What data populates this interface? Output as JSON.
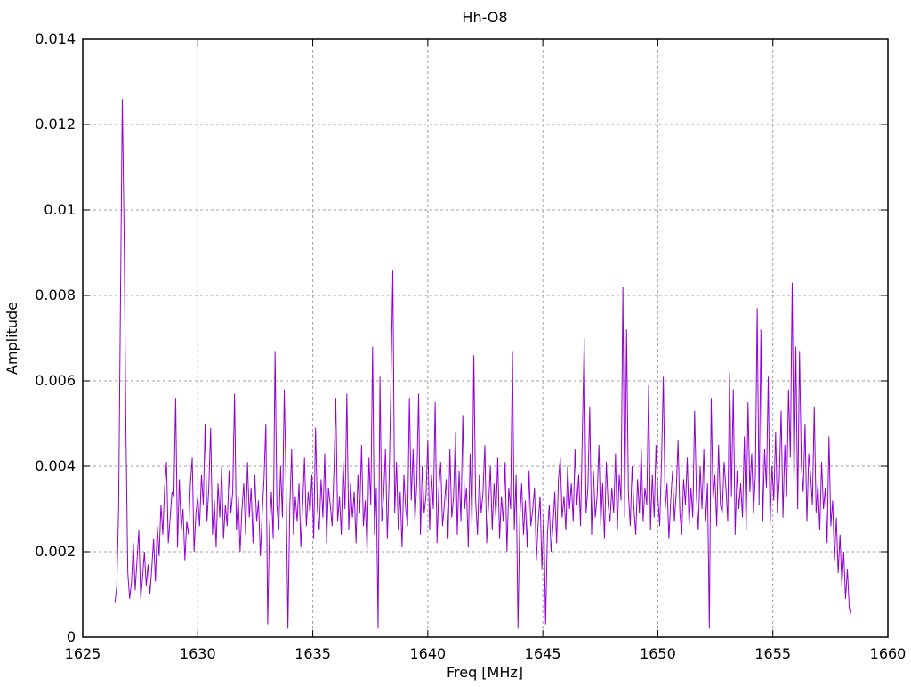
{
  "title": "Hh-O8",
  "xlabel": "Freq [MHz]",
  "ylabel": "Amplitude",
  "colors": {
    "line": "#9400d3",
    "grid": "#a0a0a0",
    "axis": "#000000",
    "background": "#ffffff"
  },
  "axes": {
    "x": {
      "min": 1625,
      "max": 1660,
      "tick_values": [
        1625,
        1630,
        1635,
        1640,
        1645,
        1650,
        1655,
        1660
      ],
      "tick_labels": [
        "1625",
        "1630",
        "1635",
        "1640",
        "1645",
        "1650",
        "1655",
        "1660"
      ]
    },
    "y": {
      "min": 0,
      "max": 0.014,
      "tick_values": [
        0,
        0.002,
        0.004,
        0.006,
        0.008,
        0.01,
        0.012,
        0.014
      ],
      "tick_labels": [
        "0",
        "0.002",
        "0.004",
        "0.006",
        "0.008",
        "0.01",
        "0.012",
        "0.014"
      ]
    }
  },
  "chart_data": {
    "type": "line",
    "title": "Hh-O8",
    "xlabel": "Freq [MHz]",
    "ylabel": "Amplitude",
    "xlim": [
      1625,
      1660
    ],
    "ylim": [
      0,
      0.014
    ],
    "grid": true,
    "legend": "none",
    "series_name": "amplitude-spectrum",
    "x_start": 1626.4,
    "x_step": 0.08,
    "amplitude_unit": 0.0001,
    "amplitudes": [
      8,
      12,
      30,
      79,
      126,
      94,
      47,
      15,
      9,
      13,
      22,
      11,
      18,
      25,
      9,
      14,
      20,
      12,
      17,
      10,
      16,
      23,
      13,
      26,
      19,
      31,
      24,
      35,
      41,
      22,
      28,
      34,
      33,
      56,
      21,
      37,
      25,
      30,
      18,
      27,
      24,
      36,
      42,
      20,
      29,
      33,
      26,
      38,
      31,
      50,
      27,
      35,
      49,
      24,
      32,
      21,
      36,
      28,
      40,
      23,
      31,
      26,
      39,
      29,
      34,
      57,
      25,
      33,
      20,
      30,
      36,
      24,
      41,
      28,
      35,
      22,
      38,
      27,
      32,
      19,
      29,
      37,
      50,
      3,
      26,
      34,
      23,
      67,
      31,
      25,
      40,
      28,
      58,
      35,
      2,
      30,
      44,
      24,
      33,
      27,
      36,
      21,
      31,
      42,
      26,
      34,
      29,
      38,
      23,
      49,
      30,
      25,
      37,
      28,
      43,
      22,
      35,
      31,
      26,
      39,
      56,
      27,
      33,
      24,
      41,
      30,
      57,
      25,
      36,
      28,
      34,
      22,
      38,
      29,
      45,
      26,
      32,
      20,
      42,
      31,
      68,
      24,
      35,
      2,
      61,
      27,
      33,
      44,
      23,
      37,
      60,
      86,
      29,
      41,
      25,
      34,
      21,
      38,
      30,
      26,
      56,
      32,
      44,
      27,
      36,
      57,
      24,
      40,
      29,
      33,
      46,
      25,
      38,
      30,
      55,
      22,
      35,
      41,
      26,
      31,
      37,
      23,
      44,
      28,
      33,
      48,
      24,
      39,
      27,
      52,
      30,
      35,
      21,
      43,
      26,
      66,
      32,
      24,
      38,
      29,
      34,
      45,
      22,
      31,
      40,
      25,
      36,
      28,
      42,
      23,
      33,
      27,
      41,
      20,
      35,
      30,
      67,
      25,
      38,
      2,
      28,
      36,
      24,
      32,
      21,
      39,
      26,
      30,
      35,
      18,
      27,
      33,
      16,
      29,
      3,
      24,
      31,
      20,
      26,
      34,
      22,
      37,
      42,
      28,
      33,
      25,
      40,
      30,
      36,
      27,
      44,
      31,
      38,
      26,
      48,
      70,
      29,
      35,
      54,
      24,
      39,
      28,
      33,
      45,
      26,
      36,
      23,
      41,
      31,
      27,
      35,
      29,
      43,
      25,
      38,
      32,
      82,
      28,
      72,
      34,
      26,
      40,
      30,
      24,
      37,
      29,
      44,
      27,
      35,
      31,
      59,
      25,
      38,
      28,
      45,
      33,
      26,
      41,
      61,
      30,
      36,
      23,
      32,
      39,
      27,
      34,
      46,
      29,
      24,
      37,
      31,
      42,
      26,
      35,
      28,
      53,
      33,
      25,
      40,
      30,
      44,
      27,
      36,
      2,
      56,
      32,
      38,
      26,
      45,
      31,
      29,
      41,
      35,
      27,
      62,
      33,
      58,
      24,
      39,
      30,
      36,
      28,
      47,
      25,
      55,
      34,
      43,
      29,
      38,
      77,
      31,
      72,
      27,
      44,
      35,
      61,
      26,
      40,
      32,
      48,
      29,
      37,
      53,
      28,
      45,
      33,
      58,
      42,
      83,
      36,
      68,
      30,
      67,
      40,
      34,
      50,
      27,
      43,
      38,
      31,
      54,
      29,
      36,
      25,
      41,
      30,
      35,
      22,
      47,
      26,
      32,
      18,
      28,
      15,
      24,
      12,
      20,
      9,
      16,
      7,
      5
    ],
    "notable_peaks": [
      {
        "freq": 1626.72,
        "amp": 0.0126
      },
      {
        "freq": 1626.8,
        "amp": 0.0094
      },
      {
        "freq": 1638.48,
        "amp": 0.0086
      },
      {
        "freq": 1655.84,
        "amp": 0.0083
      },
      {
        "freq": 1648.48,
        "amp": 0.0082
      },
      {
        "freq": 1654.32,
        "amp": 0.0077
      },
      {
        "freq": 1648.64,
        "amp": 0.0072
      },
      {
        "freq": 1646.8,
        "amp": 0.007
      },
      {
        "freq": 1637.6,
        "amp": 0.0068
      },
      {
        "freq": 1656.0,
        "amp": 0.0068
      },
      {
        "freq": 1633.36,
        "amp": 0.0067
      },
      {
        "freq": 1643.68,
        "amp": 0.0067
      },
      {
        "freq": 1642.0,
        "amp": 0.0066
      }
    ]
  }
}
